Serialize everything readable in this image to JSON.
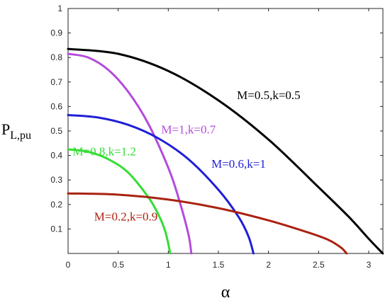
{
  "chart_data": {
    "type": "line",
    "xlabel": "α",
    "ylabel_main": "P",
    "ylabel_sub": "L,pu",
    "xlim": [
      0,
      3.14159
    ],
    "ylim": [
      0,
      1
    ],
    "xticks": [
      0,
      0.5,
      1,
      1.5,
      2,
      2.5,
      3
    ],
    "xtick_labels": [
      "0",
      "0.5",
      "1",
      "1.5",
      "2",
      "2.5",
      "3"
    ],
    "yticks": [
      0.1,
      0.2,
      0.3,
      0.4,
      0.5,
      0.6,
      0.7,
      0.8,
      0.9,
      1
    ],
    "ytick_labels": [
      "0.1",
      "0.2",
      "0.3",
      "0.4",
      "0.5",
      "0.6",
      "0.7",
      "0.8",
      "0.9",
      "1"
    ],
    "grid": false,
    "series": [
      {
        "name": "M=0.5,k=0.5",
        "color": "#000000",
        "x": [
          0,
          0.5,
          1.0,
          1.5,
          2.0,
          2.5,
          2.8,
          3.0,
          3.14
        ],
        "y": [
          0.835,
          0.815,
          0.745,
          0.625,
          0.465,
          0.27,
          0.15,
          0.06,
          0.0
        ]
      },
      {
        "name": "M=1,k=0.7",
        "color": "#b44bdc",
        "x": [
          0,
          0.2,
          0.4,
          0.6,
          0.8,
          1.0,
          1.1,
          1.2,
          1.23
        ],
        "y": [
          0.815,
          0.8,
          0.75,
          0.66,
          0.53,
          0.35,
          0.23,
          0.08,
          0.0
        ]
      },
      {
        "name": "M=0.6,k=1",
        "color": "#1f1fd6",
        "x": [
          0,
          0.3,
          0.6,
          0.9,
          1.2,
          1.5,
          1.7,
          1.8,
          1.85
        ],
        "y": [
          0.565,
          0.555,
          0.525,
          0.47,
          0.385,
          0.26,
          0.15,
          0.07,
          0.0
        ]
      },
      {
        "name": "M=0.8,k=1.2",
        "color": "#33dd33",
        "x": [
          0,
          0.2,
          0.4,
          0.6,
          0.8,
          0.9,
          0.97,
          1.02
        ],
        "y": [
          0.425,
          0.415,
          0.385,
          0.33,
          0.23,
          0.16,
          0.09,
          0.0
        ]
      },
      {
        "name": "M=0.2,k=0.9",
        "color": "#aa2211",
        "x": [
          0,
          0.5,
          1.0,
          1.5,
          2.0,
          2.4,
          2.6,
          2.72,
          2.78
        ],
        "y": [
          0.245,
          0.24,
          0.22,
          0.185,
          0.135,
          0.085,
          0.055,
          0.025,
          0.0
        ]
      }
    ],
    "annotations": [
      {
        "text": "M=0.5,k=0.5",
        "x": 1.685,
        "y": 0.63,
        "color": "#000000"
      },
      {
        "text": "M=1,k=0.7",
        "x": 0.93,
        "y": 0.49,
        "color": "#b44bdc"
      },
      {
        "text": "M=0.6,k=1",
        "x": 1.43,
        "y": 0.35,
        "color": "#1f1fd6"
      },
      {
        "text": "M=0.8,k=1.2",
        "x": 0.045,
        "y": 0.4,
        "color": "#33dd33"
      },
      {
        "text": "M=0.2,k=0.9",
        "x": 0.26,
        "y": 0.135,
        "color": "#aa2211"
      }
    ]
  }
}
